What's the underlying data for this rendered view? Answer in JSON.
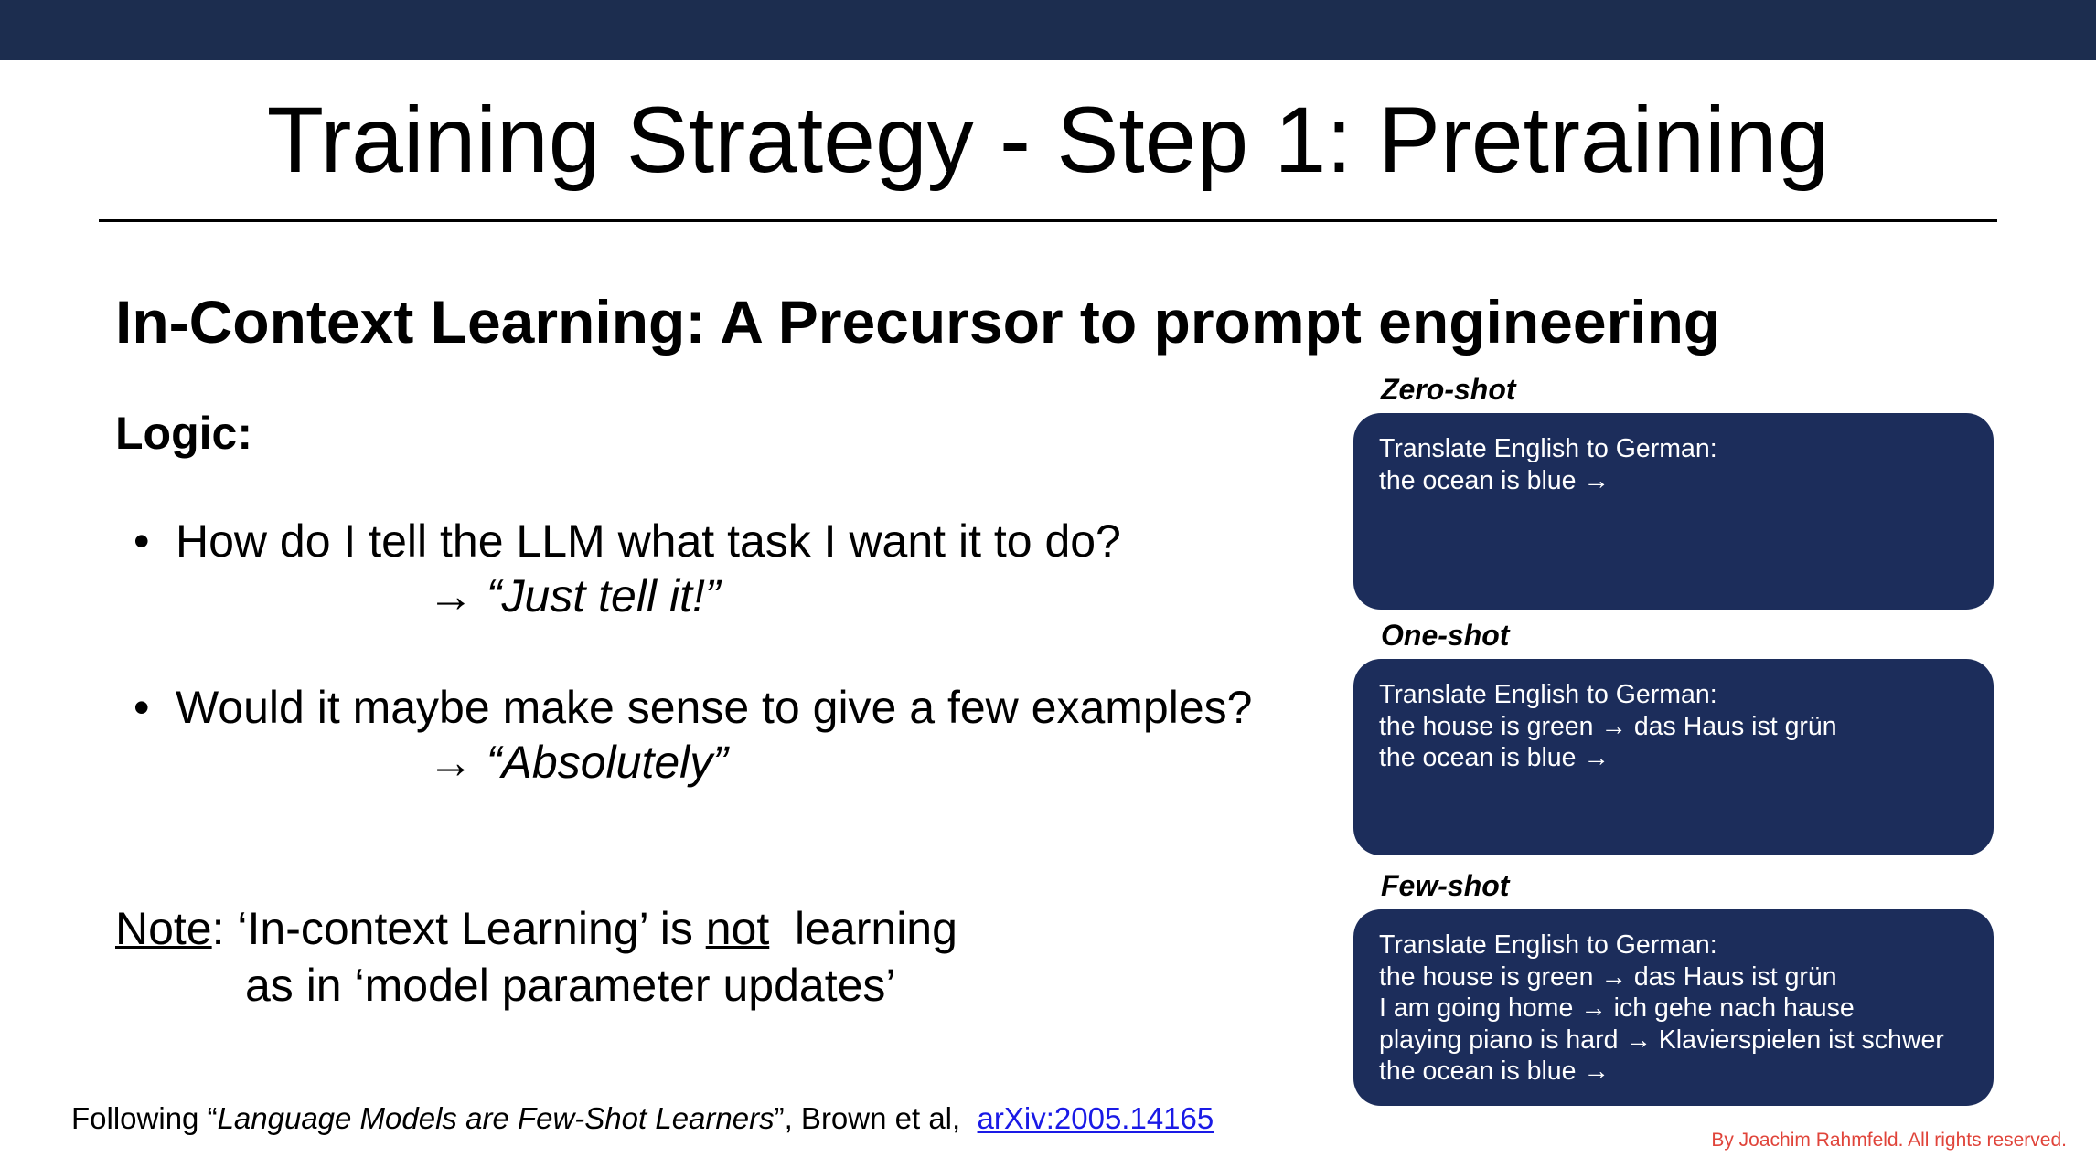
{
  "slide": {
    "title": "Training Strategy - Step 1: Pretraining",
    "subtitle": "In-Context Learning: A Precursor to prompt engineering",
    "logic_label": "Logic:",
    "bullets": [
      {
        "dot": "•",
        "text": "How do I tell the LLM what task I want it to do?",
        "arrow": "→",
        "answer": "“Just tell it!”"
      },
      {
        "dot": "•",
        "text": "Would it maybe make sense to give a few examples?",
        "arrow": "→",
        "answer": "“Absolutely”"
      }
    ],
    "note": {
      "label": "Note",
      "part1": ": ‘In-context Learning’ is ",
      "emph": "not",
      "part2": "  learning",
      "line2": "as in ‘model parameter updates’"
    },
    "examples": [
      {
        "label": "Zero-shot",
        "lines": [
          "Translate English to German:",
          "the ocean is blue →"
        ]
      },
      {
        "label": "One-shot",
        "lines": [
          "Translate English to German:",
          "the house is green → das Haus ist grün",
          "the ocean is blue →"
        ]
      },
      {
        "label": "Few-shot",
        "lines": [
          "Translate English to German:",
          "the house is green → das Haus ist grün",
          "I am going home → ich gehe nach hause",
          "playing piano is hard → Klavierspielen ist schwer",
          "the ocean is blue →"
        ]
      }
    ],
    "footer": {
      "prefix": "Following “",
      "paper": "Language Models are Few-Shot Learners",
      "suffix": "”, Brown et al,  ",
      "link": "arXiv:2005.14165"
    },
    "copyright": "By Joachim Rahmfeld. All rights reserved.",
    "colors": {
      "top_bar": "#1c2d4f",
      "box_bg": "#1c2d5b",
      "link": "#1a1ae6",
      "copyright": "#e0443a"
    }
  }
}
